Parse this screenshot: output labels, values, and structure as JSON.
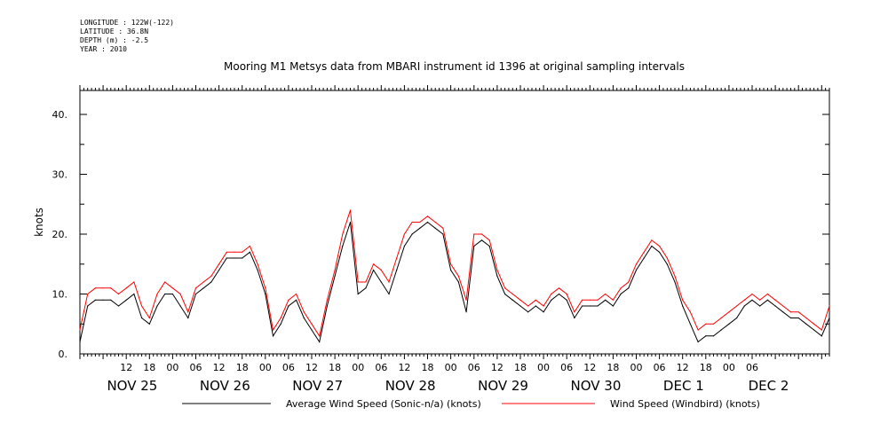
{
  "header": {
    "longitude": "LONGITUDE : 122W(-122)",
    "latitude": "LATITUDE : 36.8N",
    "depth": "DEPTH (m) : -2.5",
    "year": "YEAR : 2010"
  },
  "chart_data": {
    "type": "line",
    "title": "Mooring M1 Metsys data from MBARI instrument id 1396 at original sampling intervals",
    "ylabel": "knots",
    "xlabel": "",
    "ylim": [
      0,
      44
    ],
    "xlim_hours": [
      0,
      194
    ],
    "yticks": [
      0,
      10,
      20,
      30,
      40
    ],
    "ytick_labels": [
      "0.",
      "10.",
      "20.",
      "30.",
      "40."
    ],
    "hour_tick_labels": [
      "12",
      "18",
      "00",
      "06",
      "12",
      "18",
      "00",
      "06",
      "12",
      "18",
      "00",
      "06",
      "12",
      "18",
      "00",
      "06",
      "12",
      "18",
      "00",
      "06",
      "12",
      "18",
      "00",
      "06",
      "12",
      "18",
      "00",
      "06"
    ],
    "hour_tick_hours": [
      12,
      18,
      24,
      30,
      36,
      42,
      48,
      54,
      60,
      66,
      72,
      78,
      84,
      90,
      96,
      102,
      108,
      114,
      120,
      126,
      132,
      138,
      144,
      150,
      156,
      162,
      168,
      174
    ],
    "day_labels": [
      "NOV 25",
      "NOV 26",
      "NOV 27",
      "NOV 28",
      "NOV 29",
      "NOV 30",
      "DEC  1",
      "DEC  2"
    ],
    "day_label_hours": [
      7,
      31,
      55,
      79,
      103,
      127,
      151,
      173
    ],
    "grid": false,
    "legend_position": "bottom",
    "series": [
      {
        "name": "Average Wind Speed (Sonic-n/a) (knots)",
        "color": "#000000",
        "x": [
          0,
          2,
          4,
          6,
          8,
          10,
          12,
          14,
          16,
          18,
          20,
          22,
          24,
          26,
          28,
          30,
          32,
          34,
          36,
          38,
          40,
          42,
          44,
          46,
          48,
          50,
          52,
          54,
          56,
          58,
          60,
          62,
          64,
          66,
          68,
          70,
          72,
          74,
          76,
          78,
          80,
          82,
          84,
          86,
          88,
          90,
          92,
          94,
          96,
          98,
          100,
          102,
          104,
          106,
          108,
          110,
          112,
          114,
          116,
          118,
          120,
          122,
          124,
          126,
          128,
          130,
          132,
          134,
          136,
          138,
          140,
          142,
          144,
          146,
          148,
          150,
          152,
          154,
          156,
          158,
          160,
          162,
          164,
          166,
          168,
          170,
          172,
          174,
          176,
          178,
          180,
          182,
          184,
          186,
          188,
          190,
          192,
          194
        ],
        "y": [
          2,
          8,
          9,
          9,
          9,
          8,
          9,
          10,
          6,
          5,
          8,
          10,
          10,
          8,
          6,
          10,
          11,
          12,
          14,
          16,
          16,
          16,
          17,
          14,
          10,
          3,
          5,
          8,
          9,
          6,
          4,
          2,
          8,
          13,
          18,
          22,
          10,
          11,
          14,
          12,
          10,
          14,
          18,
          20,
          21,
          22,
          21,
          20,
          14,
          12,
          7,
          18,
          19,
          18,
          13,
          10,
          9,
          8,
          7,
          8,
          7,
          9,
          10,
          9,
          6,
          8,
          8,
          8,
          9,
          8,
          10,
          11,
          14,
          16,
          18,
          17,
          15,
          12,
          8,
          5,
          2,
          3,
          3,
          4,
          5,
          6,
          8,
          9,
          8,
          9,
          8,
          7,
          6,
          6,
          5,
          4,
          3,
          6
        ]
      },
      {
        "name": "Wind Speed (Windbird) (knots)",
        "color": "#ff0000",
        "x": [
          0,
          2,
          4,
          6,
          8,
          10,
          12,
          14,
          16,
          18,
          20,
          22,
          24,
          26,
          28,
          30,
          32,
          34,
          36,
          38,
          40,
          42,
          44,
          46,
          48,
          50,
          52,
          54,
          56,
          58,
          60,
          62,
          64,
          66,
          68,
          70,
          72,
          74,
          76,
          78,
          80,
          82,
          84,
          86,
          88,
          90,
          92,
          94,
          96,
          98,
          100,
          102,
          104,
          106,
          108,
          110,
          112,
          114,
          116,
          118,
          120,
          122,
          124,
          126,
          128,
          130,
          132,
          134,
          136,
          138,
          140,
          142,
          144,
          146,
          148,
          150,
          152,
          154,
          156,
          158,
          160,
          162,
          164,
          166,
          168,
          170,
          172,
          174,
          176,
          178,
          180,
          182,
          184,
          186,
          188,
          190,
          192,
          194
        ],
        "y": [
          4,
          10,
          11,
          11,
          11,
          10,
          11,
          12,
          8,
          6,
          10,
          12,
          11,
          10,
          7,
          11,
          12,
          13,
          15,
          17,
          17,
          17,
          18,
          15,
          11,
          4,
          6,
          9,
          10,
          7,
          5,
          3,
          9,
          14,
          20,
          24,
          12,
          12,
          15,
          14,
          12,
          16,
          20,
          22,
          22,
          23,
          22,
          21,
          15,
          13,
          9,
          20,
          20,
          19,
          14,
          11,
          10,
          9,
          8,
          9,
          8,
          10,
          11,
          10,
          7,
          9,
          9,
          9,
          10,
          9,
          11,
          12,
          15,
          17,
          19,
          18,
          16,
          13,
          9,
          7,
          4,
          5,
          5,
          6,
          7,
          8,
          9,
          10,
          9,
          10,
          9,
          8,
          7,
          7,
          6,
          5,
          4,
          8
        ]
      }
    ]
  }
}
